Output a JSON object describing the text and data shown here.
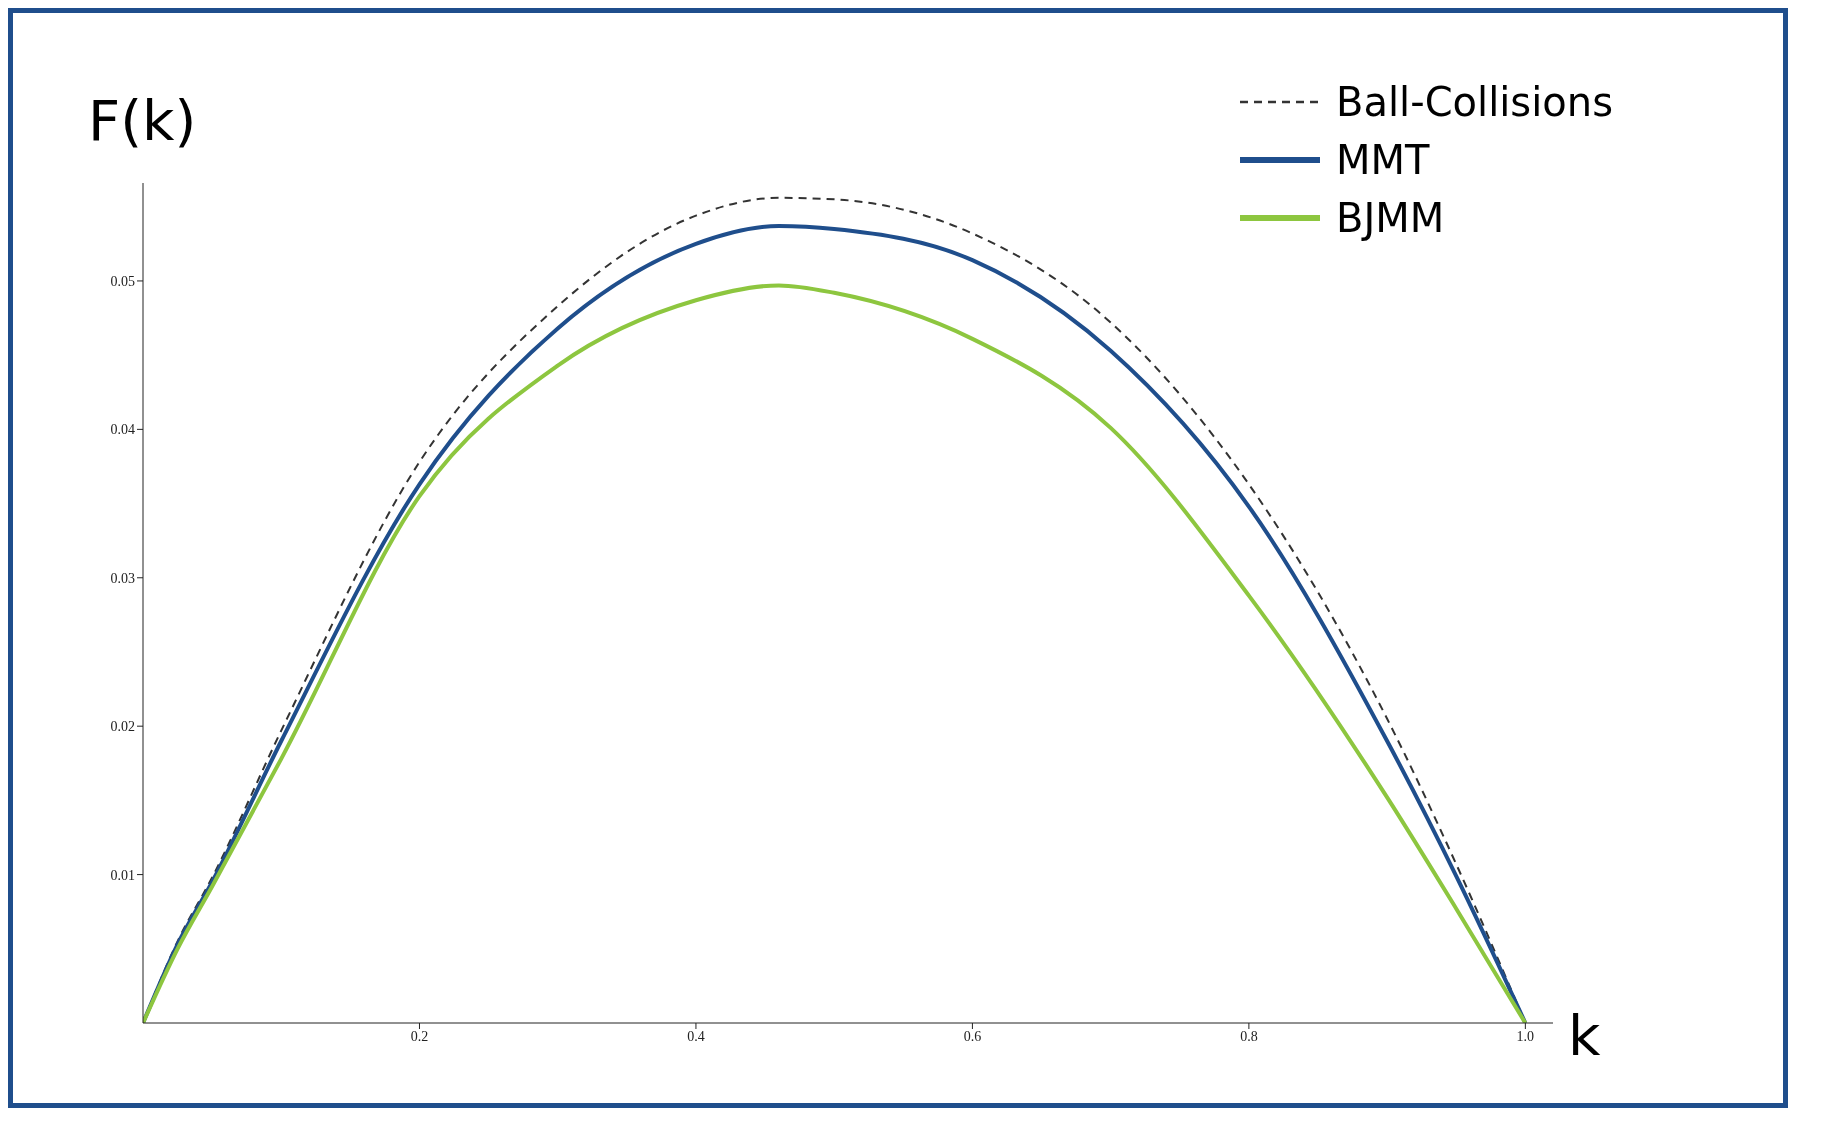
{
  "chart_data": {
    "type": "line",
    "xlabel": "k",
    "ylabel": "F(k)",
    "x": [
      0,
      0.025,
      0.05,
      0.1,
      0.2,
      0.3,
      0.4,
      0.46,
      0.5,
      0.6,
      0.7,
      0.8,
      0.9,
      0.95,
      1
    ],
    "series": [
      {
        "name": "Ball-Collisions",
        "color": "#333333",
        "line_style": "dashed",
        "values": [
          0,
          0.0055,
          0.0098,
          0.0197,
          0.0378,
          0.0483,
          0.0544,
          0.0556,
          0.0555,
          0.0532,
          0.0472,
          0.0363,
          0.0205,
          0.0107,
          0
        ]
      },
      {
        "name": "MMT",
        "color": "#1f4e8c",
        "values": [
          0,
          0.0053,
          0.0095,
          0.019,
          0.0363,
          0.0468,
          0.0525,
          0.0537,
          0.0535,
          0.0514,
          0.0453,
          0.0348,
          0.019,
          0.0099,
          0
        ]
      },
      {
        "name": "BJMM",
        "color": "#8dc63f",
        "values": [
          0,
          0.005,
          0.0092,
          0.0178,
          0.0355,
          0.0443,
          0.0487,
          0.0497,
          0.0492,
          0.0461,
          0.0401,
          0.0288,
          0.0152,
          0.0077,
          0
        ]
      }
    ],
    "xlim": [
      0,
      1.02
    ],
    "xticks": [
      0.2,
      0.4,
      0.6,
      0.8,
      {
        "value": 1,
        "label": "1.0"
      }
    ],
    "ylim": [
      0,
      0.0566
    ],
    "yticks": [
      0.01,
      0.02,
      0.03,
      0.04,
      0.05
    ],
    "grid": false,
    "legend": "top right"
  }
}
